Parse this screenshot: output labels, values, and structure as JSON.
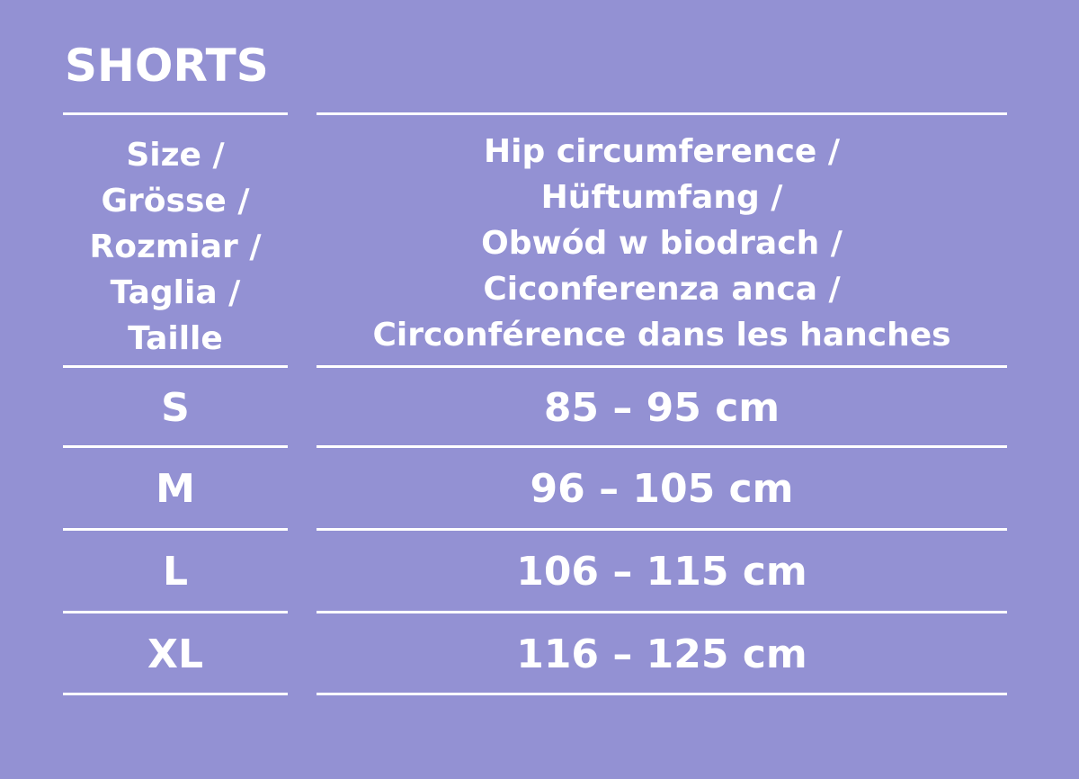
{
  "title": "SHORTS",
  "header": {
    "size_lines": [
      "Size /",
      "Grösse /",
      "Rozmiar /",
      "Taglia /",
      "Taille"
    ],
    "hip_lines": [
      "Hip circumference /",
      "Hüftumfang /",
      "Obwód w biodrach /",
      "Ciconferenza anca /",
      "Circonférence dans les hanches"
    ]
  },
  "rows": [
    {
      "size": "S",
      "hip": "85 – 95 cm"
    },
    {
      "size": "M",
      "hip": "96 – 105 cm"
    },
    {
      "size": "L",
      "hip": "106 – 115 cm"
    },
    {
      "size": "XL",
      "hip": "116 – 125 cm"
    }
  ],
  "colors": {
    "background": "#9391d3",
    "text": "#ffffff"
  }
}
